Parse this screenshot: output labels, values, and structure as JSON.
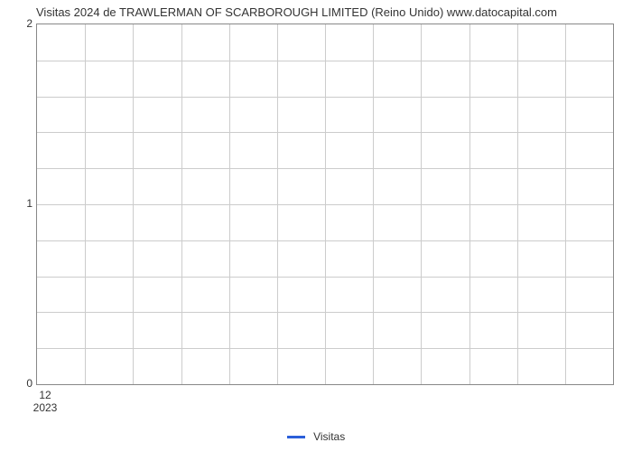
{
  "chart": {
    "type": "line",
    "title": "Visitas 2024 de TRAWLERMAN OF SCARBOROUGH LIMITED (Reino Unido) www.datocapital.com",
    "title_fontsize": 13,
    "title_color": "#333333",
    "background_color": "#ffffff",
    "plot_border_color": "#888888",
    "grid_color": "#cccccc",
    "x": {
      "ticks_major": [
        "12"
      ],
      "year_labels": [
        "2023"
      ],
      "n_vgrid": 12
    },
    "y": {
      "lim": [
        0,
        2
      ],
      "ticks_major": [
        0,
        1,
        2
      ],
      "n_hgrid_minor": 10,
      "label_fontsize": 12,
      "label_color": "#333333"
    },
    "series": [
      {
        "name": "Visitas",
        "color": "#2b5fd9",
        "line_width": 3,
        "x": [],
        "y": []
      }
    ],
    "legend": {
      "position": "bottom-center",
      "fontsize": 12
    }
  }
}
